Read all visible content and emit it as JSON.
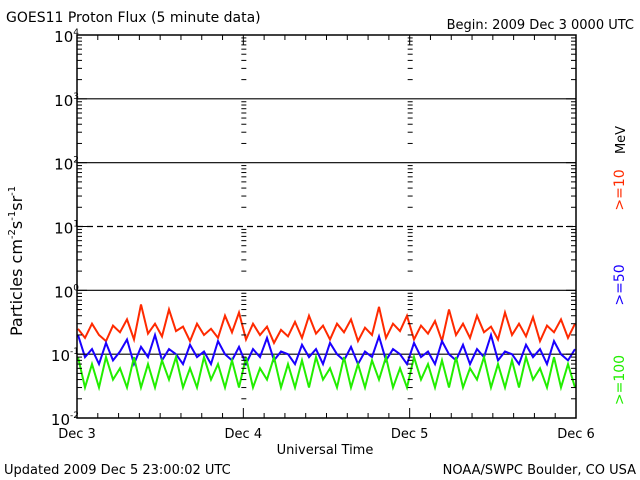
{
  "header": {
    "title": "GOES11 Proton Flux (5 minute data)",
    "begin": "Begin: 2009 Dec 3 0000 UTC"
  },
  "footer": {
    "updated": "Updated 2009 Dec  5 23:00:02 UTC",
    "source": "NOAA/SWPC Boulder, CO USA"
  },
  "colors": {
    ">=10": "#ff2a00",
    ">=50": "#1a00ff",
    ">=100": "#22ee00",
    "axis": "#000000"
  },
  "chart_data": {
    "type": "line",
    "title": "GOES11 Proton Flux (5 minute data)",
    "xlabel": "Universal Time",
    "ylabel": {
      "base": "Particles cm",
      "parts": [
        [
          "-2",
          "s"
        ],
        [
          "-1",
          "sr"
        ],
        [
          "-1",
          ""
        ]
      ]
    },
    "ylabel_text": "Particles cm-2 s-1 sr-1",
    "yscale": "log",
    "ylim": [
      0.01,
      10000
    ],
    "yticks": [
      {
        "base": "10",
        "exp": "-2"
      },
      {
        "base": "10",
        "exp": "-1"
      },
      {
        "base": "10",
        "exp": "0"
      },
      {
        "base": "10",
        "exp": "1"
      },
      {
        "base": "10",
        "exp": "2"
      },
      {
        "base": "10",
        "exp": "3"
      },
      {
        "base": "10",
        "exp": "4"
      }
    ],
    "xlim_days": [
      0,
      3
    ],
    "xticks": [
      "Dec 3",
      "Dec 4",
      "Dec 5",
      "Dec 6"
    ],
    "units_label": "MeV",
    "legend_placement": "right",
    "series": [
      {
        "name": ">=10",
        "color": "#ff2a00",
        "values": [
          0.25,
          0.18,
          0.3,
          0.2,
          0.16,
          0.28,
          0.22,
          0.35,
          0.17,
          0.6,
          0.21,
          0.3,
          0.19,
          0.5,
          0.23,
          0.27,
          0.16,
          0.3,
          0.2,
          0.25,
          0.18,
          0.4,
          0.22,
          0.45,
          0.17,
          0.3,
          0.2,
          0.27,
          0.15,
          0.24,
          0.19,
          0.32,
          0.18,
          0.4,
          0.21,
          0.28,
          0.17,
          0.3,
          0.22,
          0.35,
          0.16,
          0.26,
          0.2,
          0.55,
          0.18,
          0.3,
          0.23,
          0.4,
          0.17,
          0.28,
          0.21,
          0.33,
          0.16,
          0.5,
          0.2,
          0.3,
          0.18,
          0.4,
          0.22,
          0.27,
          0.17,
          0.45,
          0.2,
          0.3,
          0.19,
          0.38,
          0.16,
          0.28,
          0.22,
          0.35,
          0.18,
          0.3
        ]
      },
      {
        "name": ">=50",
        "color": "#1a00ff",
        "values": [
          0.2,
          0.09,
          0.12,
          0.07,
          0.15,
          0.08,
          0.11,
          0.17,
          0.07,
          0.13,
          0.09,
          0.2,
          0.08,
          0.12,
          0.1,
          0.07,
          0.14,
          0.09,
          0.11,
          0.07,
          0.16,
          0.1,
          0.08,
          0.13,
          0.07,
          0.12,
          0.09,
          0.18,
          0.08,
          0.11,
          0.1,
          0.07,
          0.14,
          0.09,
          0.12,
          0.07,
          0.15,
          0.1,
          0.08,
          0.13,
          0.07,
          0.11,
          0.09,
          0.19,
          0.08,
          0.12,
          0.1,
          0.07,
          0.15,
          0.09,
          0.11,
          0.07,
          0.16,
          0.1,
          0.08,
          0.14,
          0.07,
          0.12,
          0.09,
          0.2,
          0.08,
          0.11,
          0.1,
          0.07,
          0.14,
          0.09,
          0.12,
          0.07,
          0.16,
          0.1,
          0.08,
          0.12
        ]
      },
      {
        "name": ">=100",
        "color": "#22ee00",
        "values": [
          0.09,
          0.03,
          0.07,
          0.03,
          0.09,
          0.04,
          0.06,
          0.03,
          0.09,
          0.03,
          0.07,
          0.03,
          0.08,
          0.04,
          0.09,
          0.03,
          0.06,
          0.03,
          0.09,
          0.04,
          0.07,
          0.03,
          0.08,
          0.03,
          0.09,
          0.03,
          0.06,
          0.04,
          0.09,
          0.03,
          0.07,
          0.03,
          0.08,
          0.03,
          0.09,
          0.04,
          0.06,
          0.03,
          0.09,
          0.03,
          0.07,
          0.03,
          0.08,
          0.04,
          0.09,
          0.03,
          0.06,
          0.03,
          0.09,
          0.04,
          0.07,
          0.03,
          0.08,
          0.03,
          0.09,
          0.03,
          0.06,
          0.04,
          0.09,
          0.03,
          0.07,
          0.03,
          0.08,
          0.03,
          0.09,
          0.04,
          0.06,
          0.03,
          0.09,
          0.03,
          0.07,
          0.03
        ]
      }
    ]
  }
}
